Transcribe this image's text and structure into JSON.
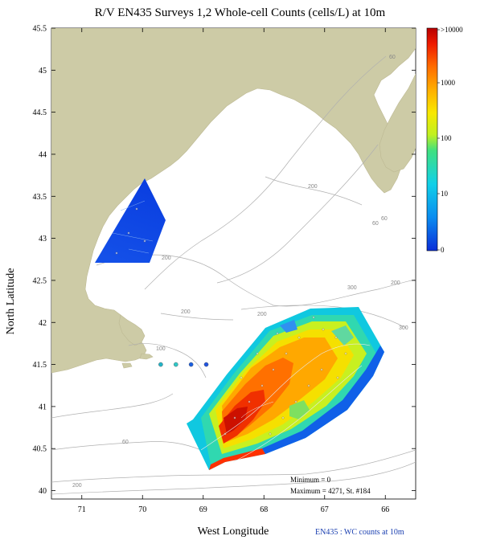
{
  "title": "R/V EN435 Surveys 1,2 Whole-cell Counts (cells/L) at 10m",
  "y_axis_label": "North Latitude",
  "x_axis_label": "West Longitude",
  "footer": "EN435 : WC counts at 10m",
  "stats": {
    "minimum": "Minimum = 0",
    "maximum": "Maximum = 4271, St. #184"
  },
  "colorbar": {
    "labels": [
      ">10000",
      "1000",
      "100",
      "10",
      "0"
    ]
  },
  "chart_data": {
    "type": "heatmap",
    "title": "R/V EN435 Surveys 1,2 Whole-cell Counts (cells/L) at 10m",
    "xlabel": "West Longitude",
    "ylabel": "North Latitude",
    "x_ticks": [
      "71",
      "70",
      "69",
      "68",
      "67",
      "66"
    ],
    "y_ticks": [
      "45.5",
      "45",
      "44.5",
      "44",
      "43.5",
      "43",
      "42.5",
      "42",
      "41.5",
      "41",
      "40.5",
      "40"
    ],
    "xlim": [
      -71.5,
      -65.5
    ],
    "ylim": [
      39.9,
      45.5
    ],
    "colorbar_scale": "log",
    "colorbar_labels": [
      ">10000",
      "1000",
      "100",
      "10",
      "0"
    ],
    "bathymetry_labels": [
      "60",
      "200",
      "200",
      "200",
      "300",
      "300",
      "200",
      "100",
      "60",
      "200",
      "60",
      "200",
      "60"
    ],
    "stations_outside_survey": [
      {
        "lon": -69.7,
        "lat": 41.5,
        "color": "#22b4c8"
      },
      {
        "lon": -69.45,
        "lat": 41.5,
        "color": "#2fc8c8"
      },
      {
        "lon": -69.2,
        "lat": 41.5,
        "color": "#1a5fe0"
      },
      {
        "lon": -68.95,
        "lat": 41.5,
        "color": "#2255e0"
      }
    ],
    "minimum": 0,
    "maximum": 4271,
    "maximum_station": "St. #184"
  }
}
